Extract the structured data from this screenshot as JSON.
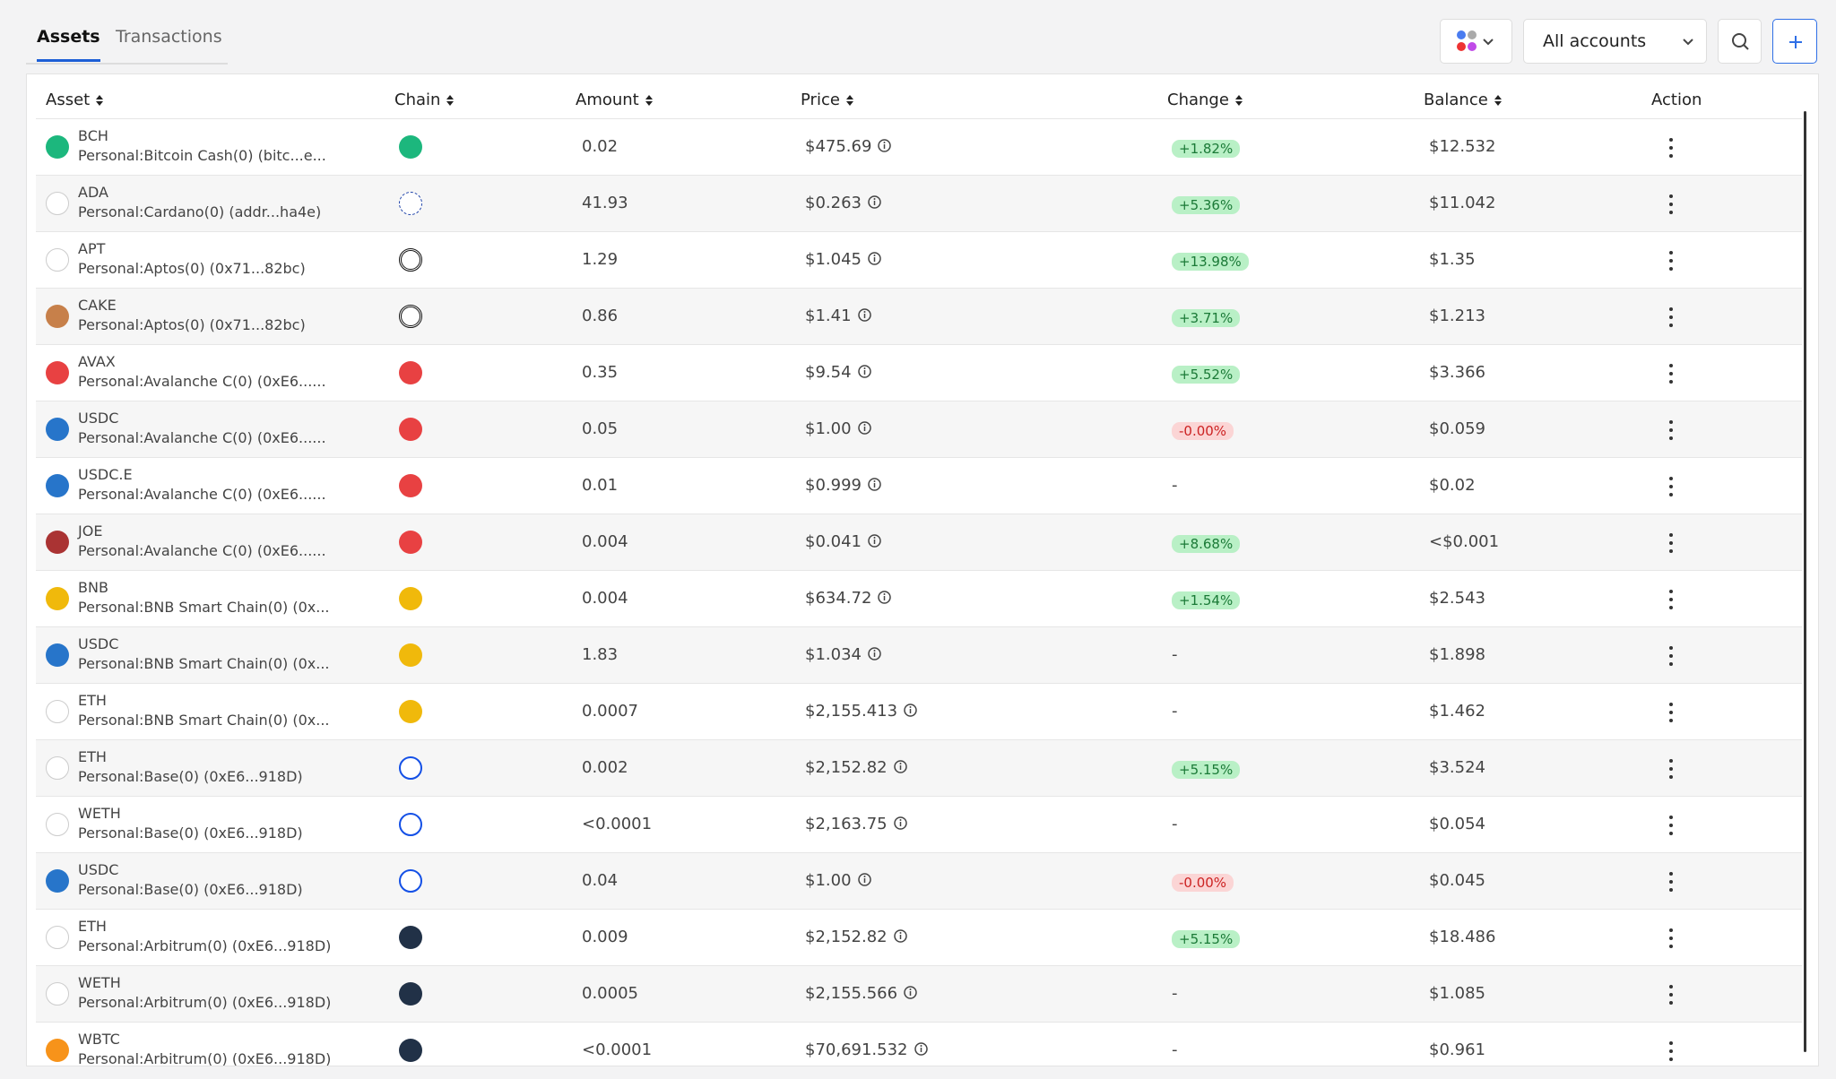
{
  "tabs": [
    "Assets",
    "Transactions"
  ],
  "account_filter": "All accounts",
  "table": {
    "columns": [
      "Asset",
      "Chain",
      "Amount",
      "Price",
      "Change",
      "Balance",
      "Action"
    ],
    "rows": [
      {
        "asset": "BCH",
        "account": "Personal:Bitcoin Cash(0) (bitc...e...",
        "amount": "0.02",
        "price": "$475.69",
        "change": "+1.82%",
        "balance": "$12.532"
      },
      {
        "asset": "ADA",
        "account": "Personal:Cardano(0) (addr...ha4e)",
        "amount": "41.93",
        "price": "$0.263",
        "change": "+5.36%",
        "balance": "$11.042"
      },
      {
        "asset": "APT",
        "account": "Personal:Aptos(0) (0x71...82bc)",
        "amount": "1.29",
        "price": "$1.045",
        "change": "+13.98%",
        "balance": "$1.35"
      },
      {
        "asset": "CAKE",
        "account": "Personal:Aptos(0) (0x71...82bc)",
        "amount": "0.86",
        "price": "$1.41",
        "change": "+3.71%",
        "balance": "$1.213"
      },
      {
        "asset": "AVAX",
        "account": "Personal:Avalanche C(0) (0xE6......",
        "amount": "0.35",
        "price": "$9.54",
        "change": "+5.52%",
        "balance": "$3.366"
      },
      {
        "asset": "USDC",
        "account": "Personal:Avalanche C(0) (0xE6......",
        "amount": "0.05",
        "price": "$1.00",
        "change": "-0.00%",
        "balance": "$0.059"
      },
      {
        "asset": "USDC.E",
        "account": "Personal:Avalanche C(0) (0xE6......",
        "amount": "0.01",
        "price": "$0.999",
        "change": "-",
        "balance": "$0.02"
      },
      {
        "asset": "JOE",
        "account": "Personal:Avalanche C(0) (0xE6......",
        "amount": "0.004",
        "price": "$0.041",
        "change": "+8.68%",
        "balance": "<$0.001"
      },
      {
        "asset": "BNB",
        "account": "Personal:BNB Smart Chain(0) (0x...",
        "amount": "0.004",
        "price": "$634.72",
        "change": "+1.54%",
        "balance": "$2.543"
      },
      {
        "asset": "USDC",
        "account": "Personal:BNB Smart Chain(0) (0x...",
        "amount": "1.83",
        "price": "$1.034",
        "change": "-",
        "balance": "$1.898"
      },
      {
        "asset": "ETH",
        "account": "Personal:BNB Smart Chain(0) (0x...",
        "amount": "0.0007",
        "price": "$2,155.413",
        "change": "-",
        "balance": "$1.462"
      },
      {
        "asset": "ETH",
        "account": "Personal:Base(0) (0xE6...918D)",
        "amount": "0.002",
        "price": "$2,152.82",
        "change": "+5.15%",
        "balance": "$3.524"
      },
      {
        "asset": "WETH",
        "account": "Personal:Base(0) (0xE6...918D)",
        "amount": "<0.0001",
        "price": "$2,163.75",
        "change": "-",
        "balance": "$0.054"
      },
      {
        "asset": "USDC",
        "account": "Personal:Base(0) (0xE6...918D)",
        "amount": "0.04",
        "price": "$1.00",
        "change": "-0.00%",
        "balance": "$0.045"
      },
      {
        "asset": "ETH",
        "account": "Personal:Arbitrum(0) (0xE6...918D)",
        "amount": "0.009",
        "price": "$2,152.82",
        "change": "+5.15%",
        "balance": "$18.486"
      },
      {
        "asset": "WETH",
        "account": "Personal:Arbitrum(0) (0xE6...918D)",
        "amount": "0.0005",
        "price": "$2,155.566",
        "change": "-",
        "balance": "$1.085"
      },
      {
        "asset": "WBTC",
        "account": "Personal:Arbitrum(0) (0xE6...918D)",
        "amount": "<0.0001",
        "price": "$70,691.532",
        "change": "-",
        "balance": "$0.961"
      }
    ]
  }
}
